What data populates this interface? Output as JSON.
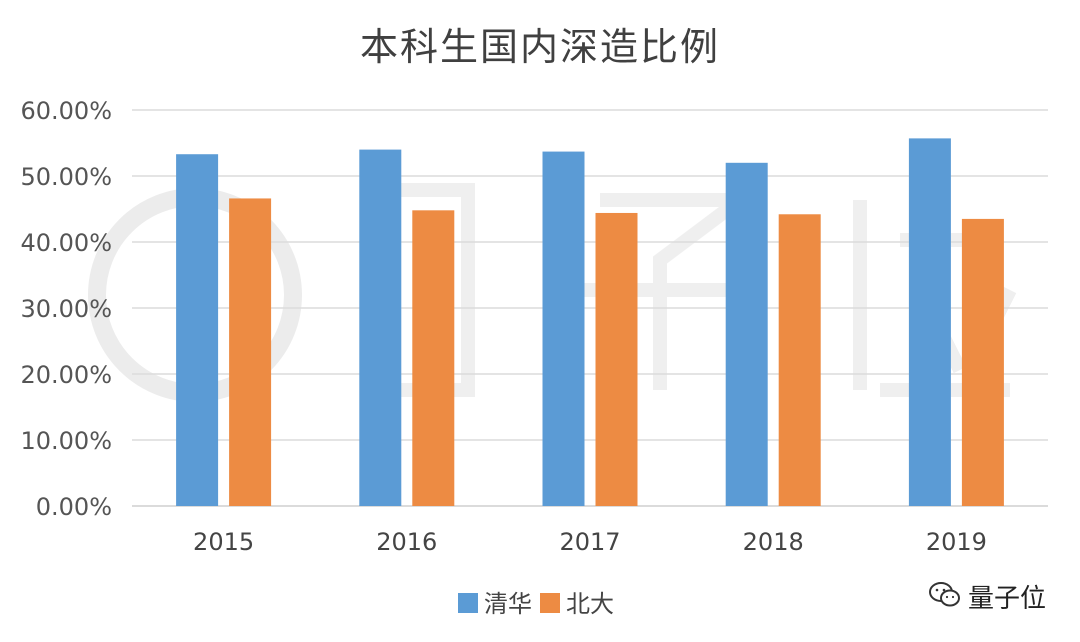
{
  "chart_data": {
    "type": "bar",
    "title": "本科生国内深造比例",
    "categories": [
      "2015",
      "2016",
      "2017",
      "2018",
      "2019"
    ],
    "series": [
      {
        "name": "清华",
        "values": [
          53.3,
          54.0,
          53.7,
          52.0,
          55.7
        ],
        "color": "#5b9bd5"
      },
      {
        "name": "北大",
        "values": [
          46.6,
          44.8,
          44.4,
          44.2,
          43.5
        ],
        "color": "#ed8b43"
      }
    ],
    "ylim": [
      0,
      60
    ],
    "yticks": [
      "0.00%",
      "10.00%",
      "20.00%",
      "30.00%",
      "40.00%",
      "50.00%",
      "60.00%"
    ],
    "grid": true,
    "legend_position": "bottom"
  },
  "watermark": {
    "label": "量子位"
  }
}
